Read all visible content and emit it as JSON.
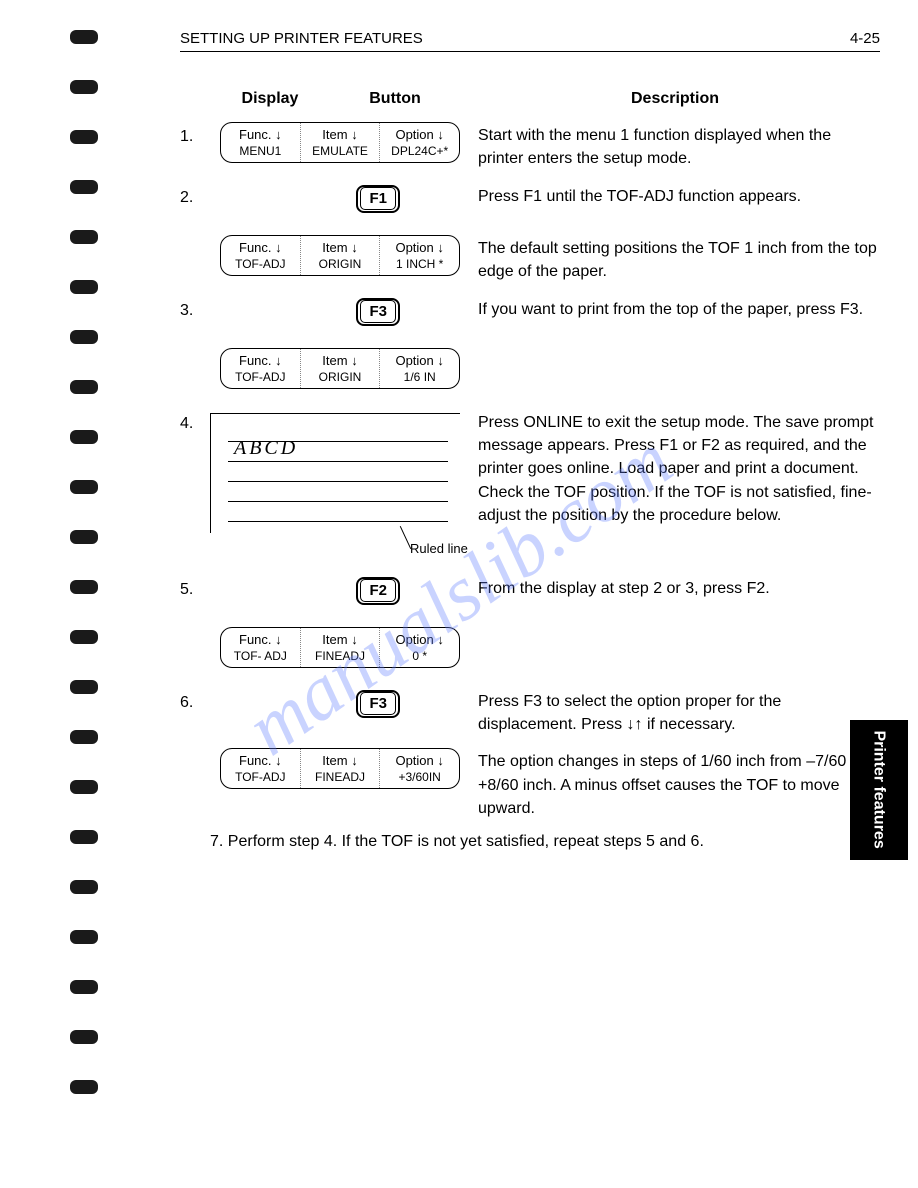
{
  "header": {
    "title": "SETTING UP PRINTER FEATURES",
    "page": "4-25"
  },
  "columns": {
    "display": "Display",
    "button": "Button",
    "description": "Description"
  },
  "steps": [
    {
      "num": "1.",
      "lcd": {
        "c1a": "Func. ↓",
        "c1b": "MENU1",
        "c2a": "Item ↓",
        "c2b": "EMULATE",
        "c3a": "Option ↓",
        "c3b": "DPL24C+*"
      },
      "desc": "Start with the menu 1 function displayed when the printer enters the setup mode."
    },
    {
      "num": "2.",
      "fkey": "F1",
      "desc": "Press F1 until the TOF-ADJ function appears."
    },
    {
      "lcd": {
        "c1a": "Func. ↓",
        "c1b": "TOF-ADJ",
        "c2a": "Item ↓",
        "c2b": "ORIGIN",
        "c3a": "Option ↓",
        "c3b": "1 INCH *"
      },
      "desc": "The default setting positions the TOF 1 inch from the top edge of the paper."
    },
    {
      "num": "3.",
      "fkey": "F3",
      "desc": "If you want to print from the top of the paper, press F3."
    },
    {
      "lcd": {
        "c1a": "Func. ↓",
        "c1b": "TOF-ADJ",
        "c2a": "Item ↓",
        "c2b": "ORIGIN",
        "c3a": "Option ↓",
        "c3b": "1/6 IN"
      },
      "desc": ""
    },
    {
      "num": "4.",
      "diagram": {
        "text": "ABCD",
        "label": "Ruled line"
      },
      "desc": "Press ONLINE to exit the setup mode. The save prompt message appears. Press F1 or F2 as required, and the printer goes online. Load paper and print a document. Check the TOF position. If the TOF is not satisfied, fine-adjust the position by the procedure below."
    },
    {
      "num": "5.",
      "fkey": "F2",
      "desc": "From the display at step 2 or 3, press F2."
    },
    {
      "lcd": {
        "c1a": "Func. ↓",
        "c1b": "TOF- ADJ",
        "c2a": "Item ↓",
        "c2b": "FINEADJ",
        "c3a": "Option ↓",
        "c3b": "0 *"
      },
      "desc": ""
    },
    {
      "num": "6.",
      "fkey": "F3",
      "desc": "Press F3 to select the option proper for the displacement. Press ↓↑ if necessary."
    },
    {
      "lcd": {
        "c1a": "Func. ↓",
        "c1b": "TOF-ADJ",
        "c2a": "Item ↓",
        "c2b": "FINEADJ",
        "c3a": "Option ↓",
        "c3b": "+3/60IN"
      },
      "desc": "The option changes in steps of 1/60 inch from –7/60 to +8/60 inch. A minus offset causes the TOF to move upward."
    }
  ],
  "final": "7. Perform step 4. If the TOF is not yet satisfied, repeat steps 5 and 6.",
  "sidetab": "Printer\nfeatures",
  "watermark": "manualslib.com"
}
